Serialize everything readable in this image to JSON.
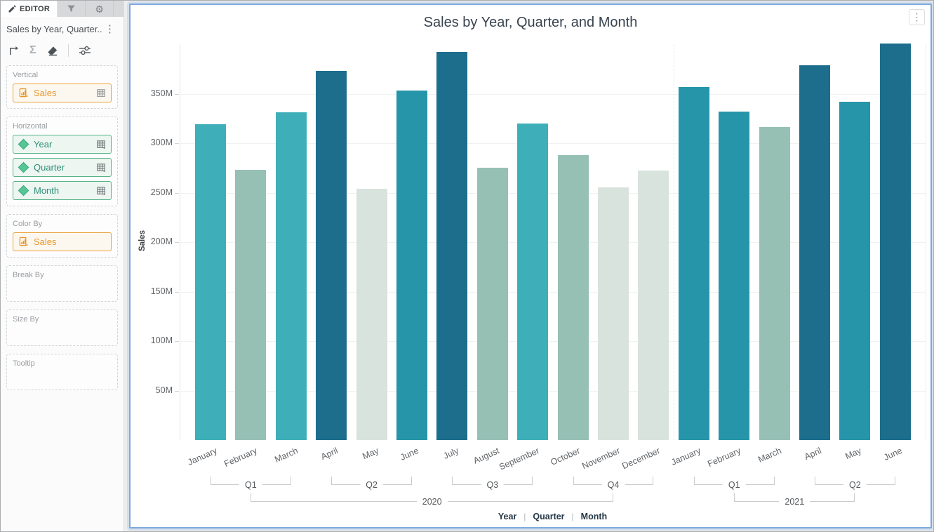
{
  "editor_panel": {
    "tabs": {
      "editor_label": "EDITOR"
    },
    "widget_title": "Sales by Year, Quarter...",
    "icons": {
      "pencil-icon": "edit",
      "filter-icon": "funnel",
      "gear-icon": "⚙",
      "kebab-icon": "⋮",
      "swap-axes-icon": "corner-arrow",
      "sigma-icon": "Σ",
      "eraser-icon": "eraser",
      "options-icon": "sliders",
      "grid-icon": "data-table",
      "measure-icon": "document-bars",
      "dimension-icon": "diamond"
    },
    "sections": {
      "vertical": {
        "label": "Vertical",
        "fields": [
          {
            "name": "Sales",
            "kind": "measure"
          }
        ]
      },
      "horizontal": {
        "label": "Horizontal",
        "fields": [
          {
            "name": "Year",
            "kind": "dimension"
          },
          {
            "name": "Quarter",
            "kind": "dimension"
          },
          {
            "name": "Month",
            "kind": "dimension"
          }
        ]
      },
      "color_by": {
        "label": "Color By",
        "fields": [
          {
            "name": "Sales",
            "kind": "measure"
          }
        ]
      },
      "break_by": {
        "label": "Break By",
        "fields": []
      },
      "size_by": {
        "label": "Size By",
        "fields": []
      },
      "tooltip": {
        "label": "Tooltip",
        "fields": []
      }
    }
  },
  "chart": {
    "kebab_icon": "⋮"
  },
  "chart_data": {
    "type": "bar",
    "title": "Sales by Year, Quarter, and Month",
    "ylabel": "Sales",
    "unit": "M",
    "ylim": [
      0,
      410
    ],
    "grid": "horizontal",
    "yticks": [
      {
        "value": 50,
        "label": "50M"
      },
      {
        "value": 100,
        "label": "100M"
      },
      {
        "value": 150,
        "label": "150M"
      },
      {
        "value": 200,
        "label": "200M"
      },
      {
        "value": 250,
        "label": "250M"
      },
      {
        "value": 300,
        "label": "300M"
      },
      {
        "value": 350,
        "label": "350M"
      }
    ],
    "bars": [
      {
        "year": 2020,
        "quarter": "Q1",
        "month": "January",
        "value": 319,
        "color": "#3eafb9"
      },
      {
        "year": 2020,
        "quarter": "Q1",
        "month": "February",
        "value": 273,
        "color": "#97c0b5"
      },
      {
        "year": 2020,
        "quarter": "Q1",
        "month": "March",
        "value": 331,
        "color": "#3eafb9"
      },
      {
        "year": 2020,
        "quarter": "Q2",
        "month": "April",
        "value": 373,
        "color": "#1d6d8c"
      },
      {
        "year": 2020,
        "quarter": "Q2",
        "month": "May",
        "value": 254,
        "color": "#d9e3dd"
      },
      {
        "year": 2020,
        "quarter": "Q2",
        "month": "June",
        "value": 353,
        "color": "#2795a9"
      },
      {
        "year": 2020,
        "quarter": "Q3",
        "month": "July",
        "value": 392,
        "color": "#1d6d8c"
      },
      {
        "year": 2020,
        "quarter": "Q3",
        "month": "August",
        "value": 275,
        "color": "#97c0b5"
      },
      {
        "year": 2020,
        "quarter": "Q3",
        "month": "September",
        "value": 320,
        "color": "#3eafb9"
      },
      {
        "year": 2020,
        "quarter": "Q4",
        "month": "October",
        "value": 288,
        "color": "#97c0b5"
      },
      {
        "year": 2020,
        "quarter": "Q4",
        "month": "November",
        "value": 255,
        "color": "#d9e3dd"
      },
      {
        "year": 2020,
        "quarter": "Q4",
        "month": "December",
        "value": 272,
        "color": "#d9e3dd"
      },
      {
        "year": 2021,
        "quarter": "Q1",
        "month": "January",
        "value": 357,
        "color": "#2795a9"
      },
      {
        "year": 2021,
        "quarter": "Q1",
        "month": "February",
        "value": 332,
        "color": "#2795a9"
      },
      {
        "year": 2021,
        "quarter": "Q1",
        "month": "March",
        "value": 316,
        "color": "#97c0b5"
      },
      {
        "year": 2021,
        "quarter": "Q2",
        "month": "April",
        "value": 379,
        "color": "#1d6d8c"
      },
      {
        "year": 2021,
        "quarter": "Q2",
        "month": "May",
        "value": 342,
        "color": "#2795a9"
      },
      {
        "year": 2021,
        "quarter": "Q2",
        "month": "June",
        "value": 401,
        "color": "#1d6d8c"
      }
    ],
    "quarter_groups": [
      {
        "label": "Q1",
        "from": 0,
        "to": 2
      },
      {
        "label": "Q2",
        "from": 3,
        "to": 5
      },
      {
        "label": "Q3",
        "from": 6,
        "to": 8
      },
      {
        "label": "Q4",
        "from": 9,
        "to": 11
      },
      {
        "label": "Q1",
        "from": 12,
        "to": 14
      },
      {
        "label": "Q2",
        "from": 15,
        "to": 17
      }
    ],
    "year_groups": [
      {
        "label": "2020",
        "from_quarter": 0,
        "to_quarter": 3
      },
      {
        "label": "2021",
        "from_quarter": 4,
        "to_quarter": 5
      }
    ],
    "xlabel_levels": [
      "Year",
      "Quarter",
      "Month"
    ],
    "colors": {
      "palette_low_to_high": [
        "#d9e3dd",
        "#97c0b5",
        "#3eafb9",
        "#2795a9",
        "#1d6d8c"
      ],
      "selection_border": "#7ea9dc",
      "measure_pill": "#e8962e",
      "dimension_pill": "#2f8d78"
    }
  }
}
